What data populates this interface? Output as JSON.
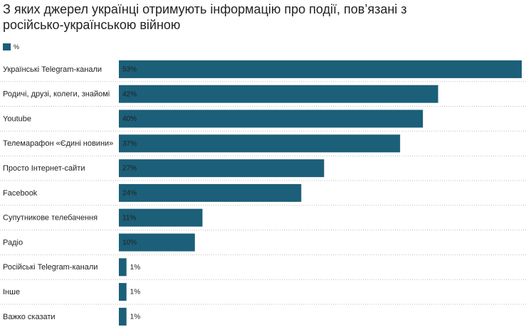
{
  "chart_data": {
    "type": "bar",
    "orientation": "horizontal",
    "title": "З яких джерел українці отримують інформацію про події, пов’язані з російсько-українською війною",
    "categories": [
      "Українські Telegram-канали",
      "Родичі, друзі, колеги, знайомі",
      "Youtube",
      "Телемарафон «Єдині новини»",
      "Просто Інтернет-сайти",
      "Facebook",
      "Супутникове телебачення",
      "Радіо",
      "Російські Telegram-канали",
      "Інше",
      "Важко сказати"
    ],
    "series": [
      {
        "name": "%",
        "color": "#1b5f79",
        "values": [
          53,
          42,
          40,
          37,
          27,
          24,
          11,
          10,
          1,
          1,
          1
        ],
        "value_labels": [
          "53%",
          "42%",
          "40%",
          "37%",
          "27%",
          "24%",
          "11%",
          "10%",
          "1%",
          "1%",
          "1%"
        ]
      }
    ],
    "legend": "top-left"
  }
}
